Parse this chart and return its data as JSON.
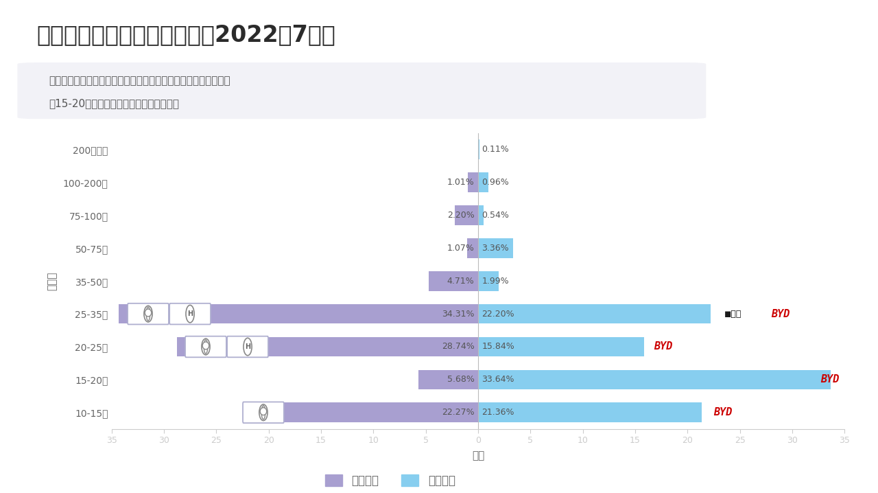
{
  "title": "混合动力和插电混动的比较（2022年7月）",
  "title_number": "10",
  "subtitle_line1": "从目前的情况来看，插电混动和混合动力的价位段是重叠在一起的",
  "subtitle_line2": "在15-20万这个区间段，混合动力布局稍晚",
  "ylabel": "价位段",
  "xlabel": "占比",
  "legend_hybrid": "混合动力",
  "legend_phev": "插电混动",
  "categories": [
    "10-15万",
    "15-20万",
    "20-25万",
    "25-35万",
    "35-50万",
    "50-75万",
    "75-100万",
    "100-200万",
    "200万以上"
  ],
  "hybrid_values": [
    22.27,
    5.68,
    28.74,
    34.31,
    4.71,
    1.07,
    2.2,
    1.01,
    0.0
  ],
  "phev_values": [
    21.36,
    33.64,
    15.84,
    22.2,
    1.99,
    3.36,
    0.54,
    0.96,
    0.11
  ],
  "hybrid_labels": [
    "22.27%",
    "5.68%",
    "28.74%",
    "34.31%",
    "4.71%",
    "1.07%",
    "2.20%",
    "1.01%",
    ""
  ],
  "phev_labels": [
    "21.36%",
    "33.64%",
    "15.84%",
    "22.20%",
    "1.99%",
    "3.36%",
    "0.54%",
    "0.96%",
    "0.11%"
  ],
  "hybrid_color": "#A89FD0",
  "phev_color": "#87CEEF",
  "xlim_min": -35,
  "xlim_max": 35,
  "xticks": [
    -35,
    -30,
    -25,
    -20,
    -15,
    -10,
    -5,
    0,
    5,
    10,
    15,
    20,
    25,
    30,
    35
  ],
  "xtick_labels": [
    "35",
    "30",
    "25",
    "20",
    "15",
    "10",
    "5",
    "0",
    "5",
    "10",
    "15",
    "20",
    "25",
    "30",
    "35"
  ],
  "bg_color": "#FFFFFF",
  "teal_color": "#5DC8CD",
  "bar_height": 0.6,
  "title_color": "#2B2B2B",
  "text_color": "#666666",
  "axis_color": "#CCCCCC",
  "label_fontsize": 9.0,
  "title_fontsize": 24,
  "subtitle_fontsize": 11,
  "tick_fontsize": 9,
  "ytick_fontsize": 10,
  "byd_color": "#CC0000",
  "lixiang_color": "#1A1A1A",
  "subtitle_bg": "#F2F2F7"
}
